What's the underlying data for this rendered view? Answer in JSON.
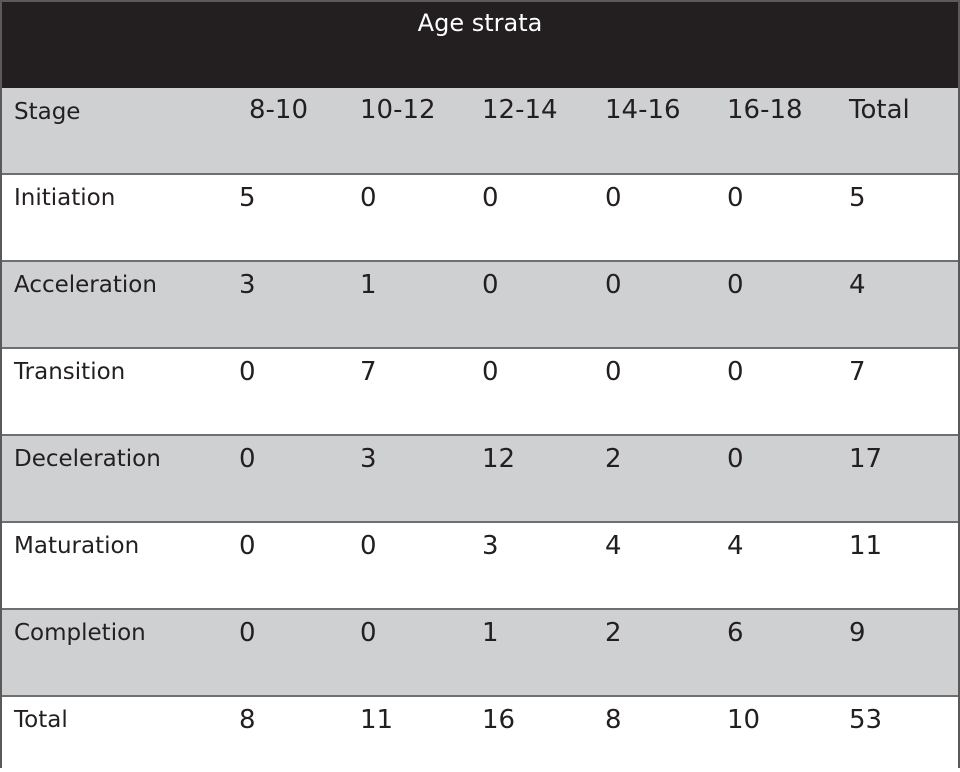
{
  "table": {
    "title": "Age strata",
    "header": {
      "stage_label": "Stage",
      "columns": [
        "8-10",
        "10-12",
        "12-14",
        "14-16",
        "16-18",
        "Total"
      ]
    },
    "rows": [
      {
        "stage": "Initiation",
        "values": [
          "5",
          "0",
          "0",
          "0",
          "0",
          "5"
        ]
      },
      {
        "stage": "Acceleration",
        "values": [
          "3",
          "1",
          "0",
          "0",
          "0",
          "4"
        ]
      },
      {
        "stage": "Transition",
        "values": [
          "0",
          "7",
          "0",
          "0",
          "0",
          "7"
        ]
      },
      {
        "stage": "Deceleration",
        "values": [
          "0",
          "3",
          "12",
          "2",
          "0",
          "17"
        ]
      },
      {
        "stage": "Maturation",
        "values": [
          "0",
          "0",
          "3",
          "4",
          "4",
          "11"
        ]
      },
      {
        "stage": "Completion",
        "values": [
          "0",
          "0",
          "1",
          "2",
          "6",
          "9"
        ]
      },
      {
        "stage": "Total",
        "values": [
          "8",
          "11",
          "16",
          "8",
          "10",
          "53"
        ]
      }
    ]
  },
  "colors": {
    "title_background": "#231f20",
    "shaded_row": "#cfd0d2",
    "white_row": "#ffffff",
    "grid_line": "#6f6f6f"
  }
}
